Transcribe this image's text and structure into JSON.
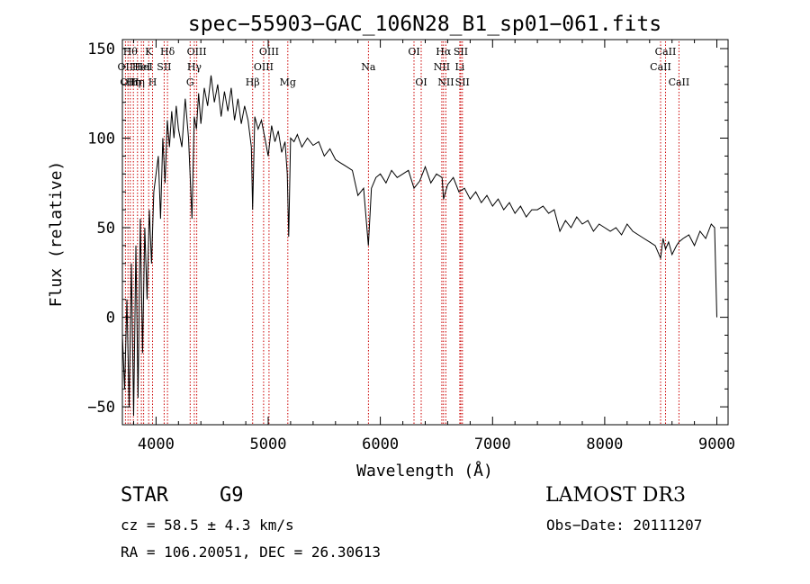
{
  "chart_data": {
    "type": "line",
    "title": "spec−55903−GAC_106N28_B1_sp01−061.fits",
    "xlabel": "Wavelength (Å)",
    "ylabel": "Flux (relative)",
    "xlim": [
      3700,
      9100
    ],
    "ylim": [
      -60,
      155
    ],
    "xticks": [
      4000,
      5000,
      6000,
      7000,
      8000,
      9000
    ],
    "yticks": [
      -50,
      0,
      50,
      100,
      150
    ],
    "ytick_labels": [
      "−50",
      "0",
      "50",
      "100",
      "150"
    ],
    "series": [
      {
        "name": "flux",
        "x": [
          3700,
          3720,
          3740,
          3760,
          3780,
          3800,
          3820,
          3840,
          3860,
          3880,
          3900,
          3920,
          3940,
          3960,
          3980,
          4000,
          4020,
          4040,
          4060,
          4080,
          4100,
          4120,
          4140,
          4160,
          4180,
          4200,
          4230,
          4260,
          4290,
          4320,
          4340,
          4360,
          4380,
          4400,
          4430,
          4460,
          4490,
          4520,
          4550,
          4580,
          4610,
          4640,
          4670,
          4700,
          4730,
          4760,
          4790,
          4820,
          4850,
          4861,
          4880,
          4910,
          4940,
          4970,
          5000,
          5030,
          5060,
          5090,
          5120,
          5150,
          5170,
          5183,
          5200,
          5230,
          5260,
          5300,
          5350,
          5400,
          5450,
          5500,
          5550,
          5600,
          5650,
          5700,
          5750,
          5800,
          5850,
          5893,
          5920,
          5960,
          6000,
          6050,
          6100,
          6150,
          6200,
          6250,
          6300,
          6350,
          6400,
          6450,
          6500,
          6550,
          6563,
          6600,
          6650,
          6700,
          6750,
          6800,
          6850,
          6900,
          6950,
          7000,
          7050,
          7100,
          7150,
          7200,
          7250,
          7300,
          7350,
          7400,
          7450,
          7500,
          7550,
          7600,
          7650,
          7700,
          7750,
          7800,
          7850,
          7900,
          7950,
          8000,
          8050,
          8100,
          8150,
          8200,
          8250,
          8300,
          8350,
          8400,
          8450,
          8498,
          8520,
          8542,
          8570,
          8600,
          8640,
          8662,
          8700,
          8750,
          8800,
          8850,
          8900,
          8950,
          8980,
          9000
        ],
        "values": [
          -10,
          -40,
          10,
          -50,
          30,
          -55,
          40,
          -45,
          55,
          -20,
          50,
          10,
          60,
          30,
          70,
          80,
          90,
          55,
          100,
          75,
          110,
          95,
          115,
          100,
          118,
          105,
          95,
          122,
          100,
          55,
          112,
          105,
          125,
          108,
          128,
          118,
          135,
          120,
          130,
          112,
          126,
          115,
          128,
          110,
          122,
          108,
          118,
          110,
          95,
          60,
          112,
          105,
          110,
          100,
          90,
          107,
          98,
          104,
          92,
          98,
          80,
          45,
          100,
          98,
          102,
          95,
          100,
          96,
          98,
          90,
          94,
          88,
          86,
          84,
          82,
          68,
          72,
          40,
          72,
          78,
          80,
          75,
          82,
          78,
          80,
          82,
          72,
          76,
          84,
          75,
          80,
          78,
          66,
          74,
          78,
          70,
          72,
          66,
          70,
          64,
          68,
          62,
          66,
          60,
          64,
          58,
          62,
          56,
          60,
          60,
          62,
          58,
          60,
          48,
          54,
          50,
          56,
          52,
          54,
          48,
          52,
          50,
          48,
          50,
          46,
          52,
          48,
          46,
          44,
          42,
          40,
          33,
          44,
          38,
          42,
          35,
          40,
          42,
          44,
          46,
          40,
          48,
          44,
          52,
          50,
          0
        ],
        "color": "#000000"
      }
    ],
    "line_color": "#cc0000",
    "lines": [
      {
        "wl": 3727,
        "label": "OII",
        "row": 2
      },
      {
        "wl": 3750,
        "label": "OII",
        "row": 3
      },
      {
        "wl": 3771,
        "label": "Hθ",
        "row": 1
      },
      {
        "wl": 3798,
        "label": "Hη",
        "row": 3
      },
      {
        "wl": 3835,
        "label": "Hη",
        "row": 3
      },
      {
        "wl": 3869,
        "label": "HeI",
        "row": 2
      },
      {
        "wl": 3889,
        "label": "HeI",
        "row": 2
      },
      {
        "wl": 3934,
        "label": "K",
        "row": 1
      },
      {
        "wl": 3969,
        "label": "H",
        "row": 3
      },
      {
        "wl": 4072,
        "label": "SII",
        "row": 2
      },
      {
        "wl": 4102,
        "label": "Hδ",
        "row": 1
      },
      {
        "wl": 4304,
        "label": "G",
        "row": 3
      },
      {
        "wl": 4341,
        "label": "Hγ",
        "row": 2
      },
      {
        "wl": 4363,
        "label": "OIII",
        "row": 1
      },
      {
        "wl": 4861,
        "label": "Hβ",
        "row": 3
      },
      {
        "wl": 4959,
        "label": "OIII",
        "row": 2
      },
      {
        "wl": 5007,
        "label": "OIII",
        "row": 1
      },
      {
        "wl": 5175,
        "label": "Mg",
        "row": 3
      },
      {
        "wl": 5894,
        "label": "Na",
        "row": 2
      },
      {
        "wl": 6300,
        "label": "OI",
        "row": 1
      },
      {
        "wl": 6364,
        "label": "OI",
        "row": 3
      },
      {
        "wl": 6548,
        "label": "NII",
        "row": 2
      },
      {
        "wl": 6563,
        "label": "Hα",
        "row": 1
      },
      {
        "wl": 6584,
        "label": "NII",
        "row": 3
      },
      {
        "wl": 6708,
        "label": "Li",
        "row": 2
      },
      {
        "wl": 6717,
        "label": "SII",
        "row": 1
      },
      {
        "wl": 6731,
        "label": "SII",
        "row": 3
      },
      {
        "wl": 8498,
        "label": "CaII",
        "row": 2
      },
      {
        "wl": 8542,
        "label": "CaII",
        "row": 1
      },
      {
        "wl": 8662,
        "label": "CaII",
        "row": 3
      }
    ]
  },
  "info": {
    "object_class": "STAR",
    "subclass": "G9",
    "survey": "LAMOST DR3",
    "redshift": "cz = 58.5 ± 4.3 km/s",
    "obs_date": "Obs−Date: 20111207",
    "coords": "RA = 106.20051, DEC =  26.30613"
  }
}
